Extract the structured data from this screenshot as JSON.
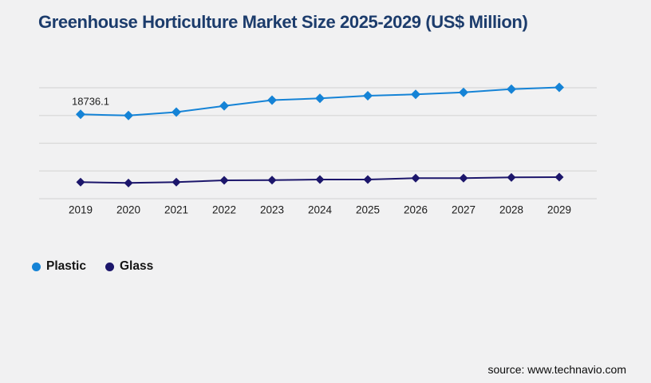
{
  "title": {
    "text": "Greenhouse Horticulture Market Size 2025-2029 (US$ Million)",
    "color": "#1c3c6c"
  },
  "chart_data": {
    "type": "line",
    "title": "Greenhouse Horticulture Market Size 2025-2029 (US$ Million)",
    "x": [
      "2019",
      "2020",
      "2021",
      "2022",
      "2023",
      "2024",
      "2025",
      "2026",
      "2027",
      "2028",
      "2029"
    ],
    "series": [
      {
        "name": "Plastic",
        "color": "#1583d6",
        "marker": "diamond",
        "values": [
          18736.1,
          18480,
          19240,
          20620,
          21900,
          22290,
          22870,
          23170,
          23630,
          24340,
          24730
        ]
      },
      {
        "name": "Glass",
        "color": "#1c166b",
        "marker": "diamond",
        "values": [
          3670,
          3490,
          3670,
          4080,
          4130,
          4250,
          4250,
          4560,
          4560,
          4730,
          4790
        ]
      }
    ],
    "annotations": [
      {
        "series": "Plastic",
        "x": "2019",
        "text": "18736.1"
      }
    ],
    "xlabel": "",
    "ylabel": "",
    "ylim": [
      0,
      27300
    ],
    "grid": true,
    "gridline_count": 5,
    "y_axis_labels_visible": false,
    "legend_position": "bottom-left"
  },
  "legend": {
    "items": [
      {
        "label": "Plastic",
        "color": "#1583d6"
      },
      {
        "label": "Glass",
        "color": "#1c166b"
      }
    ]
  },
  "source": {
    "text": "source: www.technavio.com"
  },
  "colors": {
    "background": "#f1f1f2",
    "gridline": "#d8d8d8",
    "axis_label": "#1a1a1a",
    "data_label": "#212121"
  }
}
